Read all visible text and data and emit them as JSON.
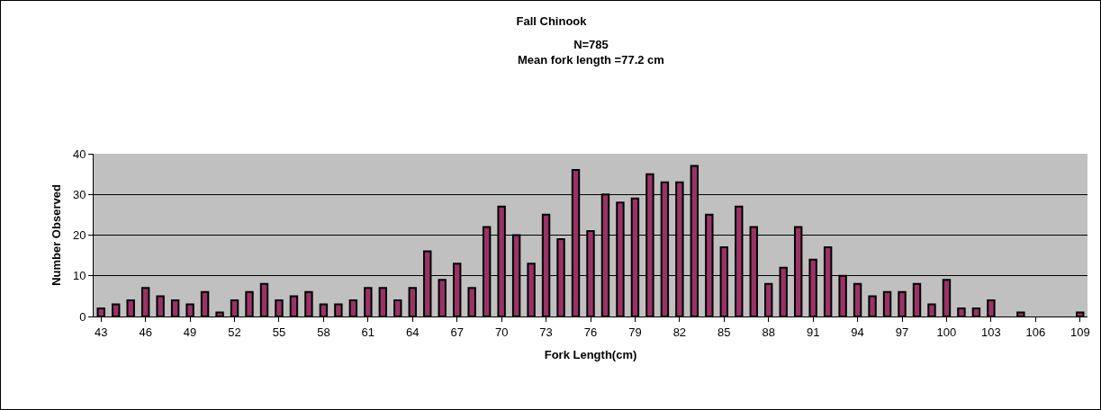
{
  "chart_data": {
    "type": "bar",
    "title": "Fall Chinook",
    "subtitle": "N=785\nMean fork length =77.2 cm",
    "xlabel": "Fork Length(cm)",
    "ylabel": "Number Observed",
    "categories": [
      "43",
      null,
      null,
      "46",
      null,
      null,
      "49",
      null,
      null,
      "52",
      null,
      null,
      "55",
      null,
      null,
      "58",
      null,
      null,
      "61",
      null,
      null,
      "64",
      null,
      null,
      "67",
      null,
      null,
      "70",
      null,
      null,
      "73",
      null,
      null,
      "76",
      null,
      null,
      "79",
      null,
      null,
      "82",
      null,
      null,
      "85",
      null,
      null,
      "88",
      null,
      null,
      "91",
      null,
      null,
      "94",
      null,
      null,
      "97",
      null,
      null,
      "100",
      null,
      null,
      "103",
      null,
      null,
      "106",
      null,
      null,
      "109"
    ],
    "values": [
      2,
      3,
      4,
      7,
      5,
      4,
      3,
      6,
      1,
      4,
      6,
      8,
      4,
      5,
      6,
      3,
      3,
      4,
      7,
      7,
      4,
      7,
      16,
      9,
      13,
      7,
      22,
      27,
      20,
      13,
      25,
      19,
      36,
      21,
      30,
      28,
      29,
      35,
      33,
      33,
      37,
      25,
      17,
      27,
      22,
      8,
      12,
      22,
      14,
      17,
      10,
      8,
      5,
      6,
      6,
      8,
      3,
      9,
      2,
      2,
      4,
      0,
      1,
      0,
      0,
      0,
      1
    ],
    "color": "#993366",
    "ylim": [
      0,
      40
    ],
    "yticks": [
      0,
      10,
      20,
      30,
      40
    ],
    "grid": "y"
  }
}
